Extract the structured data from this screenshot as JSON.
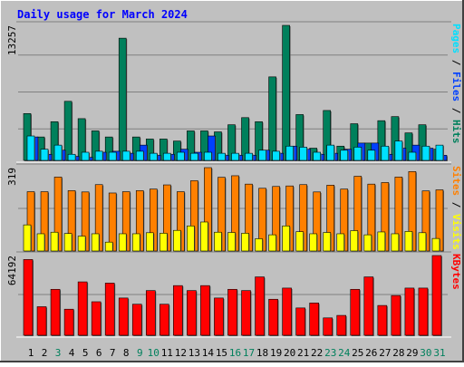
{
  "chart_data": [
    {
      "type": "bar",
      "title": "Daily usage for March 2024",
      "ylabel_max": "13257",
      "right_label": {
        "parts": [
          "Pages",
          " / ",
          "Files",
          " / ",
          "Hits"
        ]
      },
      "categories": [
        "1",
        "2",
        "3",
        "4",
        "5",
        "6",
        "7",
        "8",
        "9",
        "10",
        "11",
        "12",
        "13",
        "14",
        "15",
        "16",
        "17",
        "18",
        "19",
        "20",
        "21",
        "22",
        "23",
        "24",
        "25",
        "26",
        "27",
        "28",
        "29",
        "30",
        "31"
      ],
      "ylim": [
        0,
        13257
      ],
      "series": [
        {
          "name": "Hits",
          "color": "#00805c",
          "values": [
            4600,
            2300,
            3800,
            5800,
            4100,
            2900,
            2300,
            12000,
            2300,
            2100,
            2100,
            1900,
            2900,
            2900,
            2800,
            3500,
            4200,
            3800,
            8200,
            13257,
            4500,
            1200,
            4900,
            1400,
            3600,
            1700,
            3900,
            4300,
            2700,
            3500,
            1100
          ]
        },
        {
          "name": "Files",
          "color": "#0040ff",
          "values": [
            2300,
            600,
            1000,
            400,
            300,
            800,
            900,
            700,
            1500,
            500,
            600,
            1100,
            800,
            2400,
            500,
            500,
            500,
            1000,
            700,
            1400,
            1100,
            600,
            700,
            1100,
            1700,
            1700,
            600,
            1200,
            1500,
            1200,
            500
          ]
        },
        {
          "name": "Pages",
          "color": "#00e0ff",
          "values": [
            2400,
            1100,
            1500,
            600,
            800,
            900,
            800,
            900,
            900,
            700,
            700,
            800,
            700,
            800,
            700,
            700,
            700,
            1000,
            900,
            1400,
            1300,
            800,
            1500,
            1000,
            1300,
            1000,
            1400,
            1900,
            800,
            1400,
            1500
          ]
        }
      ]
    },
    {
      "type": "bar",
      "ylabel_max": "319",
      "right_label": {
        "parts": [
          "Sites",
          " / ",
          "Visits"
        ]
      },
      "categories": [
        "1",
        "2",
        "3",
        "4",
        "5",
        "6",
        "7",
        "8",
        "9",
        "10",
        "11",
        "12",
        "13",
        "14",
        "15",
        "16",
        "17",
        "18",
        "19",
        "20",
        "21",
        "22",
        "23",
        "24",
        "25",
        "26",
        "27",
        "28",
        "29",
        "30",
        "31"
      ],
      "ylim": [
        0,
        319
      ],
      "series": [
        {
          "name": "Sites",
          "color": "#ff8000",
          "values": [
            227,
            227,
            283,
            231,
            226,
            254,
            222,
            227,
            231,
            237,
            253,
            227,
            269,
            319,
            282,
            288,
            256,
            240,
            247,
            249,
            254,
            226,
            252,
            237,
            286,
            256,
            262,
            283,
            304,
            230,
            234
          ]
        },
        {
          "name": "Visits",
          "color": "#ffff00",
          "values": [
            100,
            66,
            72,
            67,
            57,
            66,
            34,
            66,
            66,
            70,
            68,
            79,
            96,
            111,
            72,
            71,
            68,
            47,
            62,
            96,
            74,
            66,
            71,
            66,
            78,
            62,
            73,
            66,
            75,
            70,
            48
          ]
        }
      ]
    },
    {
      "type": "bar",
      "ylabel_max": "64192",
      "right_label": {
        "parts": [
          "KBytes"
        ]
      },
      "categories": [
        "1",
        "2",
        "3",
        "4",
        "5",
        "6",
        "7",
        "8",
        "9",
        "10",
        "11",
        "12",
        "13",
        "14",
        "15",
        "16",
        "17",
        "18",
        "19",
        "20",
        "21",
        "22",
        "23",
        "24",
        "25",
        "26",
        "27",
        "28",
        "29",
        "30",
        "31"
      ],
      "ylim": [
        0,
        64192
      ],
      "series": [
        {
          "name": "KBytes",
          "color": "#ff0000",
          "values": [
            61000,
            23000,
            37000,
            21000,
            43000,
            27000,
            42000,
            30000,
            25000,
            36000,
            25000,
            40000,
            36000,
            40000,
            30000,
            37000,
            36000,
            47000,
            29000,
            38000,
            22000,
            26000,
            14000,
            16000,
            37000,
            47000,
            24000,
            32000,
            38000,
            38000,
            64192
          ]
        }
      ]
    }
  ],
  "x_labels": [
    {
      "text": "1",
      "weekend": false
    },
    {
      "text": "2",
      "weekend": false
    },
    {
      "text": "3",
      "weekend": true
    },
    {
      "text": "4",
      "weekend": false
    },
    {
      "text": "5",
      "weekend": false
    },
    {
      "text": "6",
      "weekend": false
    },
    {
      "text": "7",
      "weekend": false
    },
    {
      "text": "8",
      "weekend": false
    },
    {
      "text": "9",
      "weekend": true
    },
    {
      "text": "10",
      "weekend": true
    },
    {
      "text": "11",
      "weekend": false
    },
    {
      "text": "12",
      "weekend": false
    },
    {
      "text": "13",
      "weekend": false
    },
    {
      "text": "14",
      "weekend": false
    },
    {
      "text": "15",
      "weekend": false
    },
    {
      "text": "16",
      "weekend": true
    },
    {
      "text": "17",
      "weekend": true
    },
    {
      "text": "18",
      "weekend": false
    },
    {
      "text": "19",
      "weekend": false
    },
    {
      "text": "20",
      "weekend": false
    },
    {
      "text": "21",
      "weekend": false
    },
    {
      "text": "22",
      "weekend": false
    },
    {
      "text": "23",
      "weekend": true
    },
    {
      "text": "24",
      "weekend": true
    },
    {
      "text": "25",
      "weekend": false
    },
    {
      "text": "26",
      "weekend": false
    },
    {
      "text": "27",
      "weekend": false
    },
    {
      "text": "28",
      "weekend": false
    },
    {
      "text": "29",
      "weekend": false
    },
    {
      "text": "30",
      "weekend": true
    },
    {
      "text": "31",
      "weekend": true
    }
  ],
  "colors": {
    "background": "#c0c0c0",
    "title": "#0000ff",
    "axis_label": "#000000",
    "weekday_label": "#000000",
    "weekend_label": "#00805c",
    "grid": "#808080",
    "separator": "#ffffff"
  }
}
